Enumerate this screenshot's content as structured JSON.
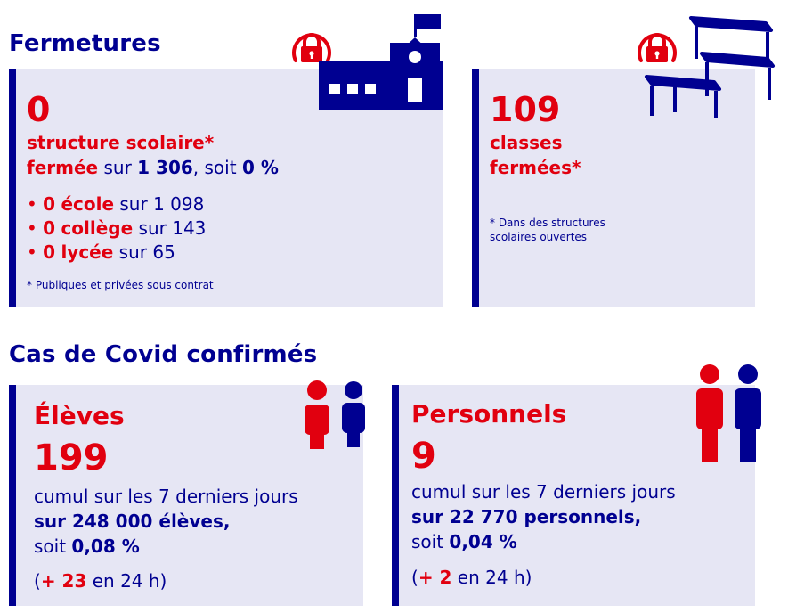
{
  "fermetures": {
    "title": "Fermetures",
    "structures": {
      "value": "0",
      "label_line1": "structure scolaire*",
      "label_red": "fermée",
      "label_mid": " sur ",
      "total": "1 306",
      "soit": ", soit ",
      "percent": "0 %",
      "items": [
        {
          "bullet": "•",
          "num": "0",
          "kind": "école",
          "rest": " sur 1 098"
        },
        {
          "bullet": "•",
          "num": "0",
          "kind": "collège",
          "rest": " sur 143"
        },
        {
          "bullet": "•",
          "num": "0",
          "kind": "lycée",
          "rest": " sur 65"
        }
      ],
      "note": "* Publiques et privées sous contrat"
    },
    "classes": {
      "value": "109",
      "label_line1": "classes",
      "label_line2": "fermées*",
      "note_line1": "* Dans des structures",
      "note_line2": "scolaires ouvertes"
    }
  },
  "covid": {
    "title": "Cas de Covid confirmés",
    "eleves": {
      "label": "Élèves",
      "value": "199",
      "line1": "cumul sur les 7 derniers jours",
      "line2": "sur 248 000 élèves,",
      "soit": "soit ",
      "percent": "0,08 %",
      "delta_open": "(",
      "delta_num": "+ 23",
      "delta_rest": " en 24 h)"
    },
    "personnels": {
      "label": "Personnels",
      "value": "9",
      "line1": "cumul sur les 7 derniers jours",
      "line2": "sur 22 770 personnels,",
      "soit": "soit ",
      "percent": "0,04 %",
      "delta_open": "(",
      "delta_num": "+ 2",
      "delta_rest": " en 24 h)"
    }
  },
  "colors": {
    "blue": "#000091",
    "red": "#e1000f",
    "card": "#e6e6f4"
  },
  "icons": [
    "lock-icon",
    "school-building-icon",
    "school-desks-icon",
    "people-icon"
  ]
}
